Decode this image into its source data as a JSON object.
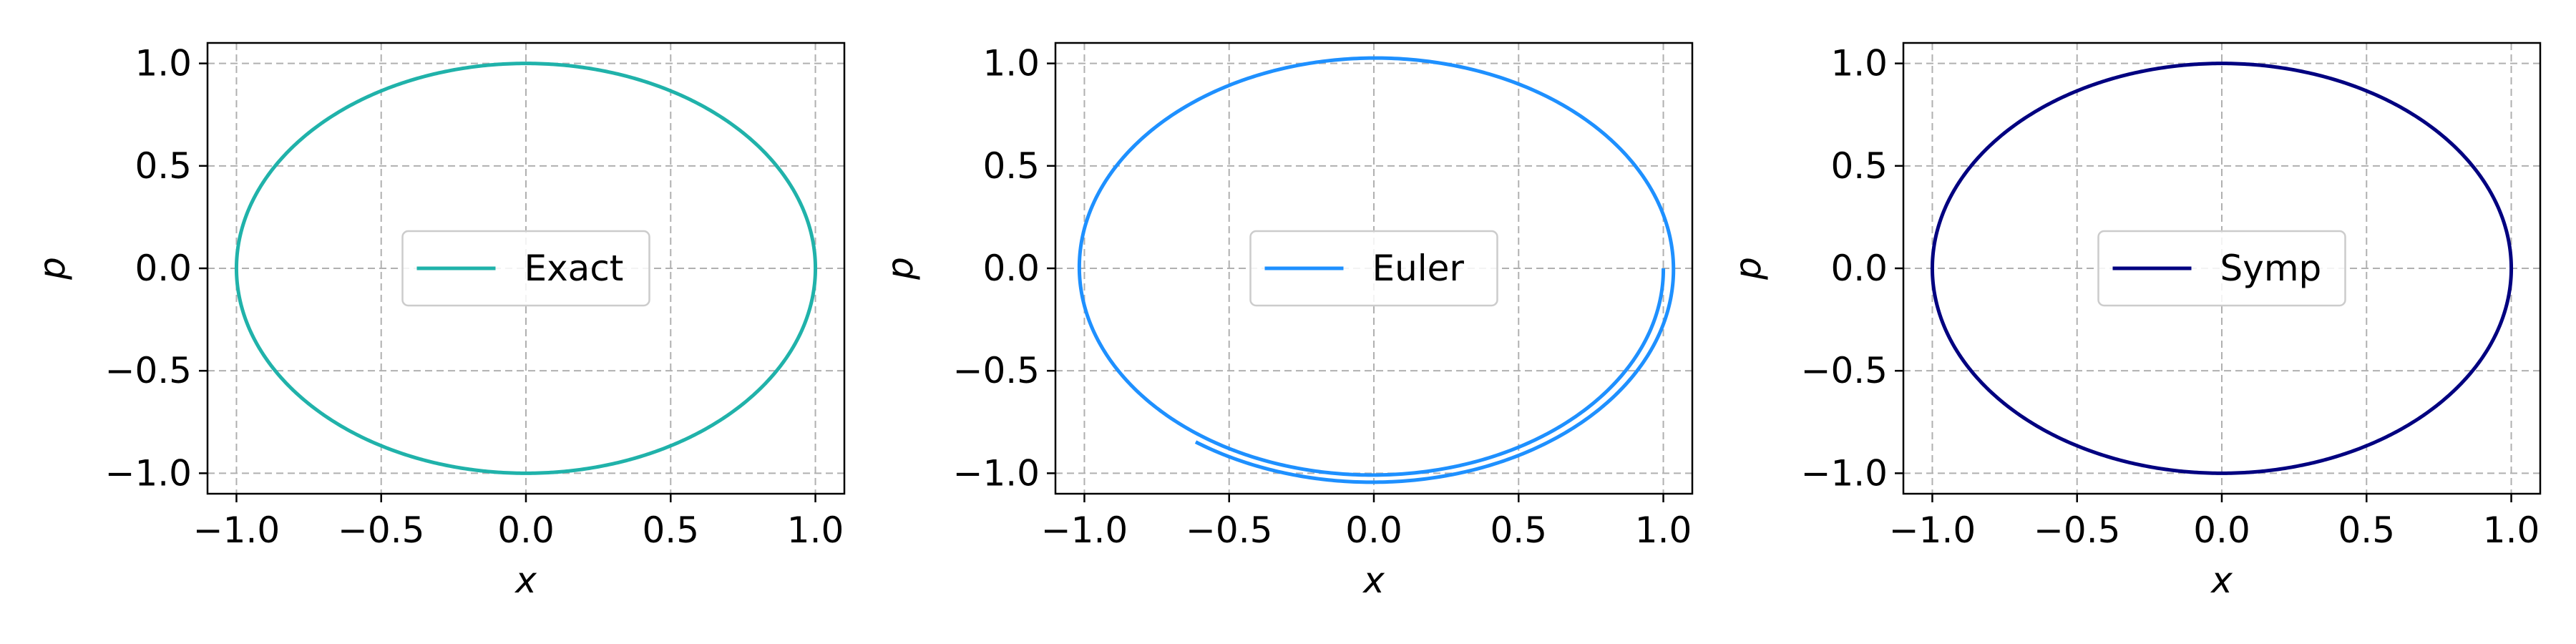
{
  "chart_data": [
    {
      "type": "line",
      "title": "",
      "xlabel": "x",
      "ylabel": "p",
      "xlim": [
        -1.1,
        1.1
      ],
      "ylim": [
        -1.1,
        1.1
      ],
      "xticks": [
        -1.0,
        -0.5,
        0.0,
        0.5,
        1.0
      ],
      "yticks": [
        -1.0,
        -0.5,
        0.0,
        0.5,
        1.0
      ],
      "xtick_labels": [
        "−1.0",
        "−0.5",
        "0.0",
        "0.5",
        "1.0"
      ],
      "ytick_labels": [
        "−1.0",
        "−0.5",
        "0.0",
        "0.5",
        "1.0"
      ],
      "grid": true,
      "legend": "center",
      "series": [
        {
          "name": "Exact",
          "color": "#20b2aa",
          "curve": "circle",
          "radius_start": 1.0,
          "radius_growth_per_turn": 0.0,
          "turns": 1.0
        }
      ]
    },
    {
      "type": "line",
      "title": "",
      "xlabel": "x",
      "ylabel": "p",
      "xlim": [
        -1.1,
        1.1
      ],
      "ylim": [
        -1.1,
        1.1
      ],
      "xticks": [
        -1.0,
        -0.5,
        0.0,
        0.5,
        1.0
      ],
      "yticks": [
        -1.0,
        -0.5,
        0.0,
        0.5,
        1.0
      ],
      "xtick_labels": [
        "−1.0",
        "−0.5",
        "0.0",
        "0.5",
        "1.0"
      ],
      "ytick_labels": [
        "−1.0",
        "−0.5",
        "0.0",
        "0.5",
        "1.0"
      ],
      "grid": true,
      "legend": "center",
      "series": [
        {
          "name": "Euler",
          "color": "#1e90ff",
          "curve": "spiral",
          "radius_start": 1.0,
          "radius_growth_per_turn": 0.035,
          "turns": 1.35
        }
      ]
    },
    {
      "type": "line",
      "title": "",
      "xlabel": "x",
      "ylabel": "p",
      "xlim": [
        -1.1,
        1.1
      ],
      "ylim": [
        -1.1,
        1.1
      ],
      "xticks": [
        -1.0,
        -0.5,
        0.0,
        0.5,
        1.0
      ],
      "yticks": [
        -1.0,
        -0.5,
        0.0,
        0.5,
        1.0
      ],
      "xtick_labels": [
        "−1.0",
        "−0.5",
        "0.0",
        "0.5",
        "1.0"
      ],
      "ytick_labels": [
        "−1.0",
        "−0.5",
        "0.0",
        "0.5",
        "1.0"
      ],
      "grid": true,
      "legend": "center",
      "series": [
        {
          "name": "Symp",
          "color": "#000080",
          "curve": "circle",
          "radius_start": 1.0,
          "radius_growth_per_turn": 0.0,
          "turns": 1.0
        }
      ]
    }
  ]
}
